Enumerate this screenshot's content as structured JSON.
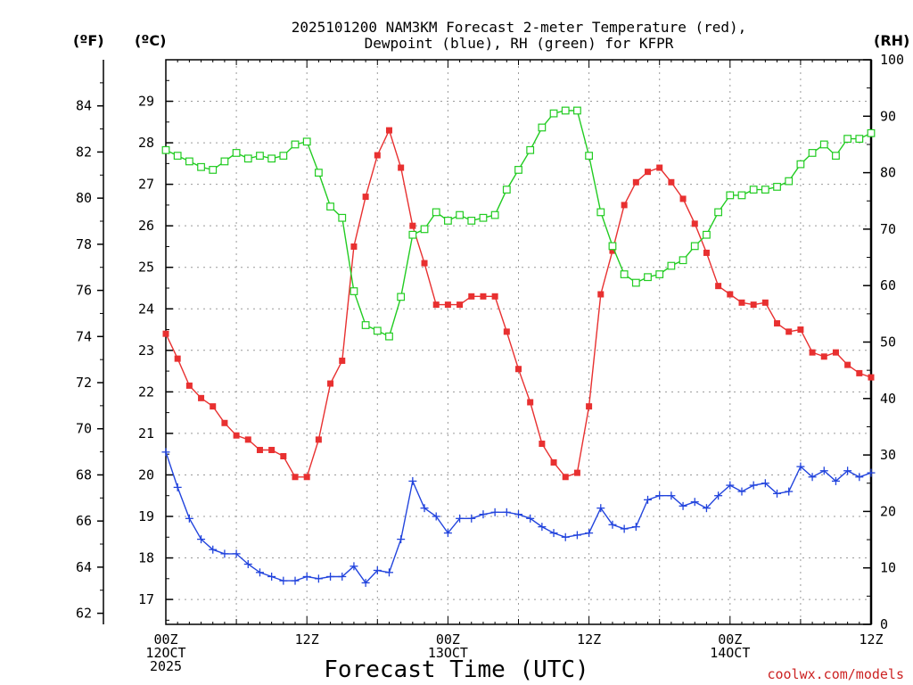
{
  "chart_data": {
    "type": "line",
    "title": [
      "2025101200 NAM3KM Forecast 2-meter Temperature (red),",
      "Dewpoint (blue), RH (green) for KFPR"
    ],
    "xlabel": "Forecast Time (UTC)",
    "watermark": "coolwx.com/models",
    "x_ticks": [
      {
        "hour": 0,
        "lines": [
          "00Z",
          "12OCT",
          "2025"
        ]
      },
      {
        "hour": 12,
        "lines": [
          "12Z"
        ]
      },
      {
        "hour": 24,
        "lines": [
          "00Z",
          "13OCT"
        ]
      },
      {
        "hour": 36,
        "lines": [
          "12Z"
        ]
      },
      {
        "hour": 48,
        "lines": [
          "00Z",
          "14OCT"
        ]
      },
      {
        "hour": 60,
        "lines": [
          "12Z"
        ]
      }
    ],
    "xlim": [
      0,
      60
    ],
    "celsius_axis": {
      "unit_label": "(ºC)",
      "range": [
        16.4,
        30.0
      ],
      "ticks": [
        17,
        18,
        19,
        20,
        21,
        22,
        23,
        24,
        25,
        26,
        27,
        28,
        29
      ]
    },
    "fahrenheit_axis": {
      "unit_label": "(ºF)",
      "ticks": [
        62,
        64,
        66,
        68,
        70,
        72,
        74,
        76,
        78,
        80,
        82,
        84
      ]
    },
    "rh_axis": {
      "unit_label": "(RH)",
      "range": [
        0,
        100
      ],
      "ticks": [
        0,
        10,
        20,
        30,
        40,
        50,
        60,
        70,
        80,
        90,
        100
      ]
    },
    "grid": true,
    "colors": {
      "temperature": "#e83030",
      "dewpoint": "#2244dd",
      "rh": "#22cc22"
    },
    "series": [
      {
        "name": "Temperature (red)",
        "key": "temperature",
        "axis": "celsius",
        "marker": "filled-square",
        "values": [
          23.4,
          22.8,
          22.15,
          21.85,
          21.65,
          21.25,
          20.95,
          20.85,
          20.6,
          20.6,
          20.45,
          19.95,
          19.95,
          20.85,
          22.2,
          22.75,
          25.5,
          26.7,
          27.7,
          28.3,
          27.4,
          26.0,
          25.1,
          24.1,
          24.1,
          24.1,
          24.3,
          24.3,
          24.3,
          23.45,
          22.55,
          21.75,
          20.75,
          20.3,
          19.95,
          20.05,
          21.65,
          24.35,
          25.4,
          26.5,
          27.05,
          27.3,
          27.4,
          27.05,
          26.65,
          26.05,
          25.35,
          24.55,
          24.35,
          24.15,
          24.1,
          24.15,
          23.65,
          23.45,
          23.5,
          22.95,
          22.85,
          22.95,
          22.65,
          22.45,
          22.35
        ]
      },
      {
        "name": "Dewpoint (blue)",
        "key": "dewpoint",
        "axis": "celsius",
        "marker": "plus",
        "values": [
          20.55,
          19.7,
          18.95,
          18.45,
          18.2,
          18.1,
          18.1,
          17.85,
          17.65,
          17.55,
          17.45,
          17.45,
          17.55,
          17.5,
          17.55,
          17.55,
          17.8,
          17.4,
          17.7,
          17.65,
          18.45,
          19.85,
          19.2,
          19.0,
          18.6,
          18.95,
          18.95,
          19.05,
          19.1,
          19.1,
          19.05,
          18.95,
          18.75,
          18.6,
          18.5,
          18.55,
          18.6,
          19.2,
          18.8,
          18.7,
          18.75,
          19.4,
          19.5,
          19.5,
          19.25,
          19.35,
          19.2,
          19.5,
          19.75,
          19.6,
          19.75,
          19.8,
          19.55,
          19.6,
          20.2,
          19.95,
          20.1,
          19.85,
          20.1,
          19.95,
          20.05
        ]
      },
      {
        "name": "RH (green)",
        "key": "rh",
        "axis": "rh",
        "marker": "open-square",
        "values": [
          84,
          83,
          82,
          81,
          80.5,
          82,
          83.5,
          82.5,
          83,
          82.5,
          83,
          85,
          85.5,
          80,
          74,
          72,
          59,
          53,
          52,
          51,
          58,
          69,
          70,
          73,
          71.5,
          72.5,
          71.5,
          72,
          72.5,
          77,
          80.5,
          84,
          88,
          90.5,
          91,
          91,
          83,
          73,
          67,
          62,
          60.5,
          61.5,
          62,
          63.5,
          64.5,
          67,
          69,
          73,
          76,
          76,
          77,
          77,
          77.5,
          78.5,
          81.5,
          83.5,
          85,
          83,
          86,
          86,
          87
        ]
      }
    ]
  }
}
